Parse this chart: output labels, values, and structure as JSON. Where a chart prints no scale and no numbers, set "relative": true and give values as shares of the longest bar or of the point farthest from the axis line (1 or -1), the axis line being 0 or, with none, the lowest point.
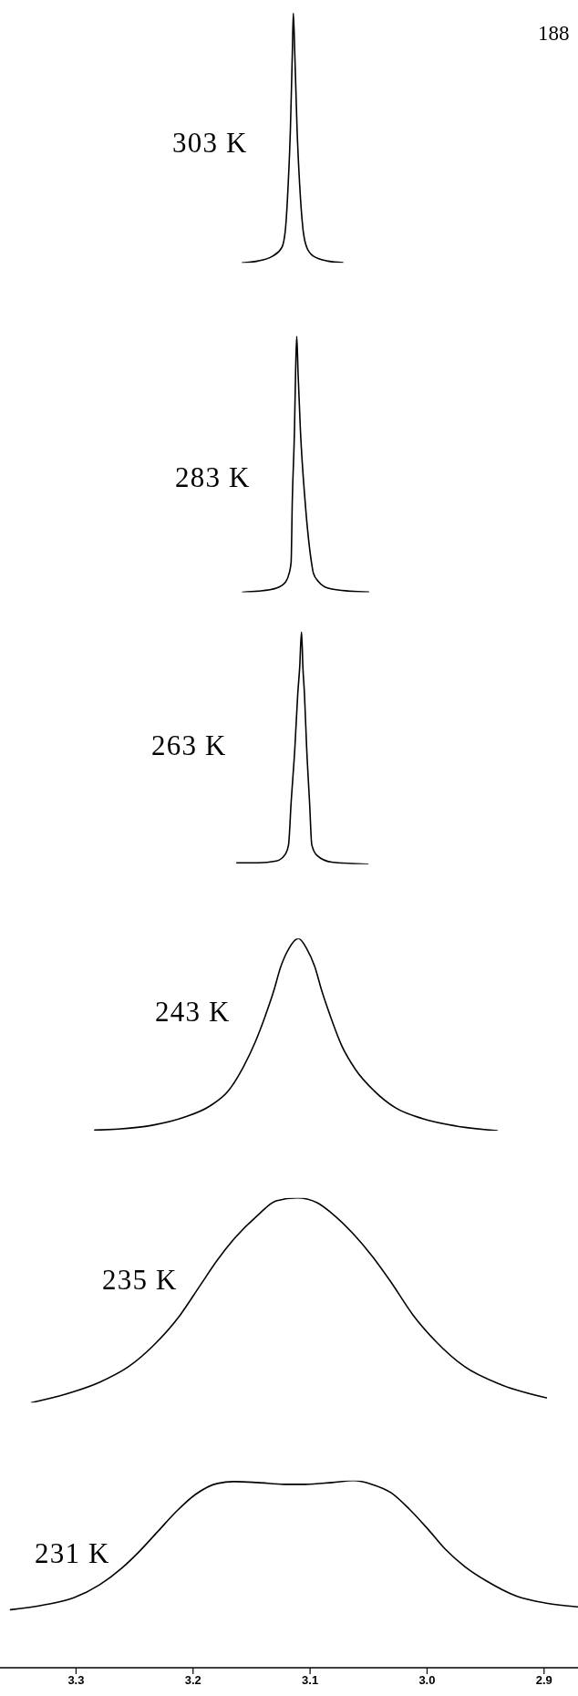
{
  "chart_data": [
    {
      "type": "line",
      "relative": true,
      "xlim": [
        3.365,
        2.871
      ],
      "tick_labels": false,
      "annotations": [
        "188"
      ],
      "x": [
        3.158,
        3.145,
        3.132,
        3.124,
        3.121,
        3.1187,
        3.1168,
        3.1152,
        3.1143,
        3.113,
        3.1111,
        3.1089,
        3.1061,
        3.1029,
        3.0972,
        3.0846,
        3.072
      ],
      "series": [
        {
          "name": "303 K",
          "color": "#000000",
          "values": [
            0,
            0.007,
            0.027,
            0.063,
            0.137,
            0.314,
            0.535,
            0.83,
            1,
            0.83,
            0.535,
            0.314,
            0.137,
            0.063,
            0.027,
            0.007,
            0.001
          ]
        }
      ]
    },
    {
      "type": "line",
      "relative": true,
      "xlim": [
        3.365,
        2.871
      ],
      "tick_labels": false,
      "x": [
        3.1578,
        3.1446,
        3.1288,
        3.1209,
        3.1178,
        3.1162,
        3.1152,
        3.1133,
        3.1124,
        3.1114,
        3.1102,
        3.1083,
        3.1042,
        3.0988,
        3.0972,
        3.0925,
        3.0846,
        3.0657,
        3.0499
      ],
      "series": [
        {
          "name": "283 K",
          "color": "#000000",
          "values": [
            0,
            0.004,
            0.016,
            0.04,
            0.075,
            0.117,
            0.353,
            0.637,
            0.85,
            1,
            0.85,
            0.637,
            0.353,
            0.117,
            0.075,
            0.04,
            0.016,
            0.004,
            0.001
          ]
        }
      ]
    },
    {
      "type": "line",
      "relative": true,
      "xlim": [
        3.365,
        2.871
      ],
      "tick_labels": false,
      "x": [
        3.1626,
        3.1446,
        3.1288,
        3.1209,
        3.1184,
        3.1162,
        3.113,
        3.1105,
        3.1089,
        3.1073,
        3.1061,
        3.1048,
        3.1029,
        3.1004,
        3.0985,
        3.0941,
        3.0815,
        3.0505
      ],
      "series": [
        {
          "name": "263 K",
          "color": "#000000",
          "values": [
            0.006,
            0.006,
            0.014,
            0.045,
            0.083,
            0.264,
            0.499,
            0.734,
            0.844,
            1,
            0.844,
            0.734,
            0.499,
            0.264,
            0.083,
            0.038,
            0.009,
            0
          ]
        }
      ]
    },
    {
      "type": "line",
      "relative": true,
      "xlim": [
        3.365,
        2.871
      ],
      "tick_labels": false,
      "x": [
        3.284,
        3.264,
        3.235,
        3.207,
        3.186,
        3.17,
        3.157,
        3.147,
        3.139,
        3.131,
        3.125,
        3.118,
        3.11,
        3.103,
        3.096,
        3.09,
        3.082,
        3.073,
        3.061,
        3.045,
        3.027,
        3.004,
        2.975,
        2.94
      ],
      "series": [
        {
          "name": "243 K",
          "color": "#000000",
          "values": [
            0.003,
            0.008,
            0.028,
            0.071,
            0.127,
            0.206,
            0.332,
            0.459,
            0.585,
            0.728,
            0.854,
            0.949,
            1,
            0.949,
            0.854,
            0.728,
            0.585,
            0.443,
            0.317,
            0.206,
            0.119,
            0.063,
            0.024,
            0
          ]
        }
      ]
    },
    {
      "type": "line",
      "relative": true,
      "xlim": [
        3.365,
        2.871
      ],
      "tick_labels": false,
      "x": [
        3.338,
        3.309,
        3.28,
        3.255,
        3.233,
        3.211,
        3.194,
        3.179,
        3.164,
        3.145,
        3.129,
        3.111,
        3.094,
        3.081,
        3.063,
        3.047,
        3.031,
        3.012,
        2.993,
        2.968,
        2.936,
        2.898
      ],
      "series": [
        {
          "name": "235 K",
          "color": "#000000",
          "values": [
            0,
            0.041,
            0.099,
            0.176,
            0.284,
            0.428,
            0.572,
            0.698,
            0.806,
            0.914,
            0.986,
            1,
            0.977,
            0.923,
            0.824,
            0.716,
            0.59,
            0.428,
            0.302,
            0.176,
            0.086,
            0.023
          ]
        }
      ]
    },
    {
      "type": "line",
      "relative": true,
      "xlim": [
        3.365,
        2.871
      ],
      "xticks": [
        3.3,
        3.2,
        3.1,
        {
          "value": 3,
          "label": "3.0"
        },
        2.9
      ],
      "tick_labels": "x",
      "x": [
        3.356,
        3.328,
        3.302,
        3.28,
        3.261,
        3.246,
        3.23,
        3.214,
        3.198,
        3.179,
        3.164,
        3.145,
        3.122,
        3.104,
        3.081,
        3.063,
        3.047,
        3.031,
        3.015,
        2.999,
        2.984,
        2.968,
        2.949,
        2.924,
        2.898,
        2.871
      ],
      "series": [
        {
          "name": "231 K",
          "color": "#000000",
          "values": [
            0.31,
            0.335,
            0.374,
            0.443,
            0.532,
            0.621,
            0.729,
            0.837,
            0.926,
            0.985,
            0.995,
            0.99,
            0.98,
            0.98,
            0.99,
            1,
            0.98,
            0.936,
            0.847,
            0.739,
            0.631,
            0.542,
            0.463,
            0.384,
            0.345,
            0.325
          ]
        }
      ]
    }
  ]
}
